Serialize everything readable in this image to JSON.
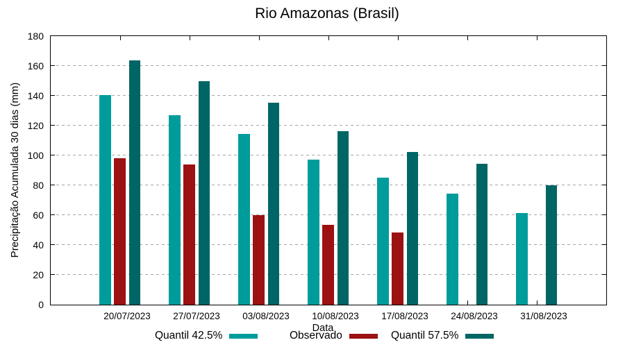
{
  "chart_data": {
    "type": "bar",
    "title": "Rio Amazonas (Brasil)",
    "xlabel": "Data",
    "ylabel": "Precipitação Acumulada 30 dias (mm)",
    "categories": [
      "20/07/2023",
      "27/07/2023",
      "03/08/2023",
      "10/08/2023",
      "17/08/2023",
      "24/08/2023",
      "31/08/2023"
    ],
    "series": [
      {
        "name": "Quantil 42.5%",
        "color": "#009c9c",
        "values": [
          140.5,
          127,
          114.5,
          97,
          85,
          74.5,
          61.5
        ]
      },
      {
        "name": "Observado",
        "color": "#9c1111",
        "values": [
          98,
          94,
          60,
          53.5,
          48.5,
          null,
          null
        ]
      },
      {
        "name": "Quantil 57.5%",
        "color": "#006565",
        "values": [
          163.5,
          150,
          135.5,
          116.5,
          102.5,
          94.5,
          80
        ]
      }
    ],
    "ylim": [
      0,
      180
    ],
    "yticks": [
      0,
      20,
      40,
      60,
      80,
      100,
      120,
      140,
      160,
      180
    ],
    "grid": "horizontal-dashed",
    "legend_position": "bottom",
    "axis_color": "#000000",
    "grid_color": "#a6a6a6",
    "background_color": "#ffffff"
  }
}
